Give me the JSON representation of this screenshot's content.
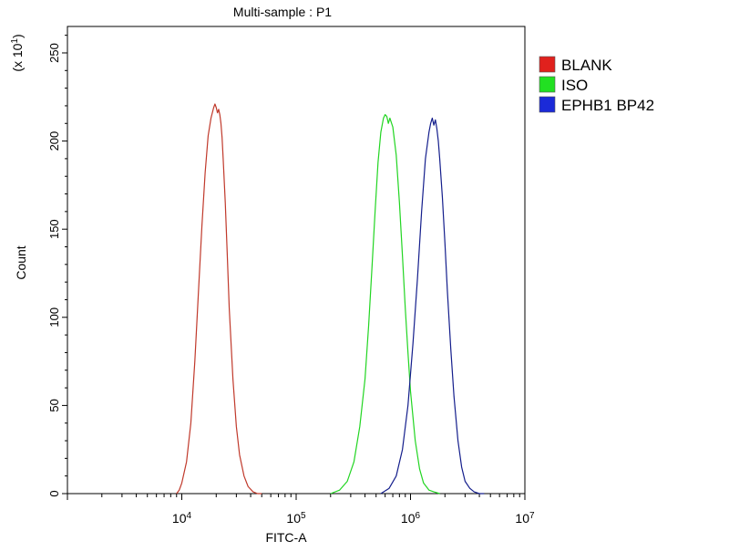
{
  "chart_data": {
    "type": "line",
    "title": "Multi-sample : P1",
    "xlabel": "FITC-A",
    "ylabel": "Count",
    "y_multiplier_label": "(x 10",
    "y_multiplier_exp": "1",
    "x_scale": "log10",
    "xlim": [
      1000,
      10000000
    ],
    "ylim": [
      0,
      265
    ],
    "y_ticks": [
      0,
      50,
      100,
      150,
      200,
      250
    ],
    "x_ticks": [
      {
        "value": 10000,
        "base": "10",
        "exp": "4"
      },
      {
        "value": 100000,
        "base": "10",
        "exp": "5"
      },
      {
        "value": 1000000,
        "base": "10",
        "exp": "6"
      },
      {
        "value": 10000000,
        "base": "10",
        "exp": "7"
      }
    ],
    "legend_position": "top-right",
    "grid": false,
    "series": [
      {
        "name": "BLANK",
        "color": "#c0392b",
        "legend_color": "#e0211d",
        "x": [
          9000,
          9500,
          10000,
          11000,
          12000,
          13000,
          14000,
          15000,
          16000,
          17000,
          18000,
          19000,
          19500,
          20000,
          20500,
          21000,
          21500,
          22000,
          22500,
          23000,
          24000,
          25000,
          26000,
          28000,
          30000,
          32000,
          35000,
          38000,
          42000,
          46000,
          50000
        ],
        "y": [
          0,
          2,
          6,
          18,
          40,
          75,
          115,
          152,
          182,
          203,
          213,
          219,
          221,
          219,
          216,
          218,
          215,
          210,
          202,
          190,
          165,
          135,
          105,
          65,
          38,
          22,
          10,
          4,
          1,
          0,
          0
        ]
      },
      {
        "name": "ISO",
        "color": "#22d522",
        "legend_color": "#22e022",
        "x": [
          200000,
          240000,
          280000,
          320000,
          360000,
          400000,
          430000,
          460000,
          490000,
          520000,
          550000,
          580000,
          600000,
          620000,
          640000,
          660000,
          700000,
          750000,
          800000,
          850000,
          900000,
          950000,
          1000000,
          1100000,
          1200000,
          1300000,
          1450000,
          1600000,
          1800000
        ],
        "y": [
          0,
          2,
          7,
          18,
          38,
          65,
          95,
          128,
          160,
          188,
          205,
          213,
          215,
          214,
          210,
          213,
          208,
          192,
          165,
          135,
          105,
          80,
          58,
          30,
          14,
          6,
          2,
          1,
          0
        ]
      },
      {
        "name": "EPHB1 BP42",
        "color": "#141e8c",
        "legend_color": "#1b2ad8",
        "x": [
          550000,
          650000,
          750000,
          850000,
          950000,
          1050000,
          1150000,
          1250000,
          1350000,
          1450000,
          1500000,
          1550000,
          1600000,
          1650000,
          1700000,
          1750000,
          1800000,
          1900000,
          2000000,
          2100000,
          2250000,
          2400000,
          2600000,
          2800000,
          3000000,
          3300000,
          3600000,
          4000000,
          4400000
        ],
        "y": [
          0,
          3,
          10,
          25,
          50,
          85,
          122,
          160,
          190,
          205,
          210,
          213,
          209,
          212,
          207,
          200,
          190,
          168,
          142,
          115,
          82,
          55,
          30,
          15,
          7,
          3,
          1,
          0,
          0
        ]
      }
    ]
  }
}
